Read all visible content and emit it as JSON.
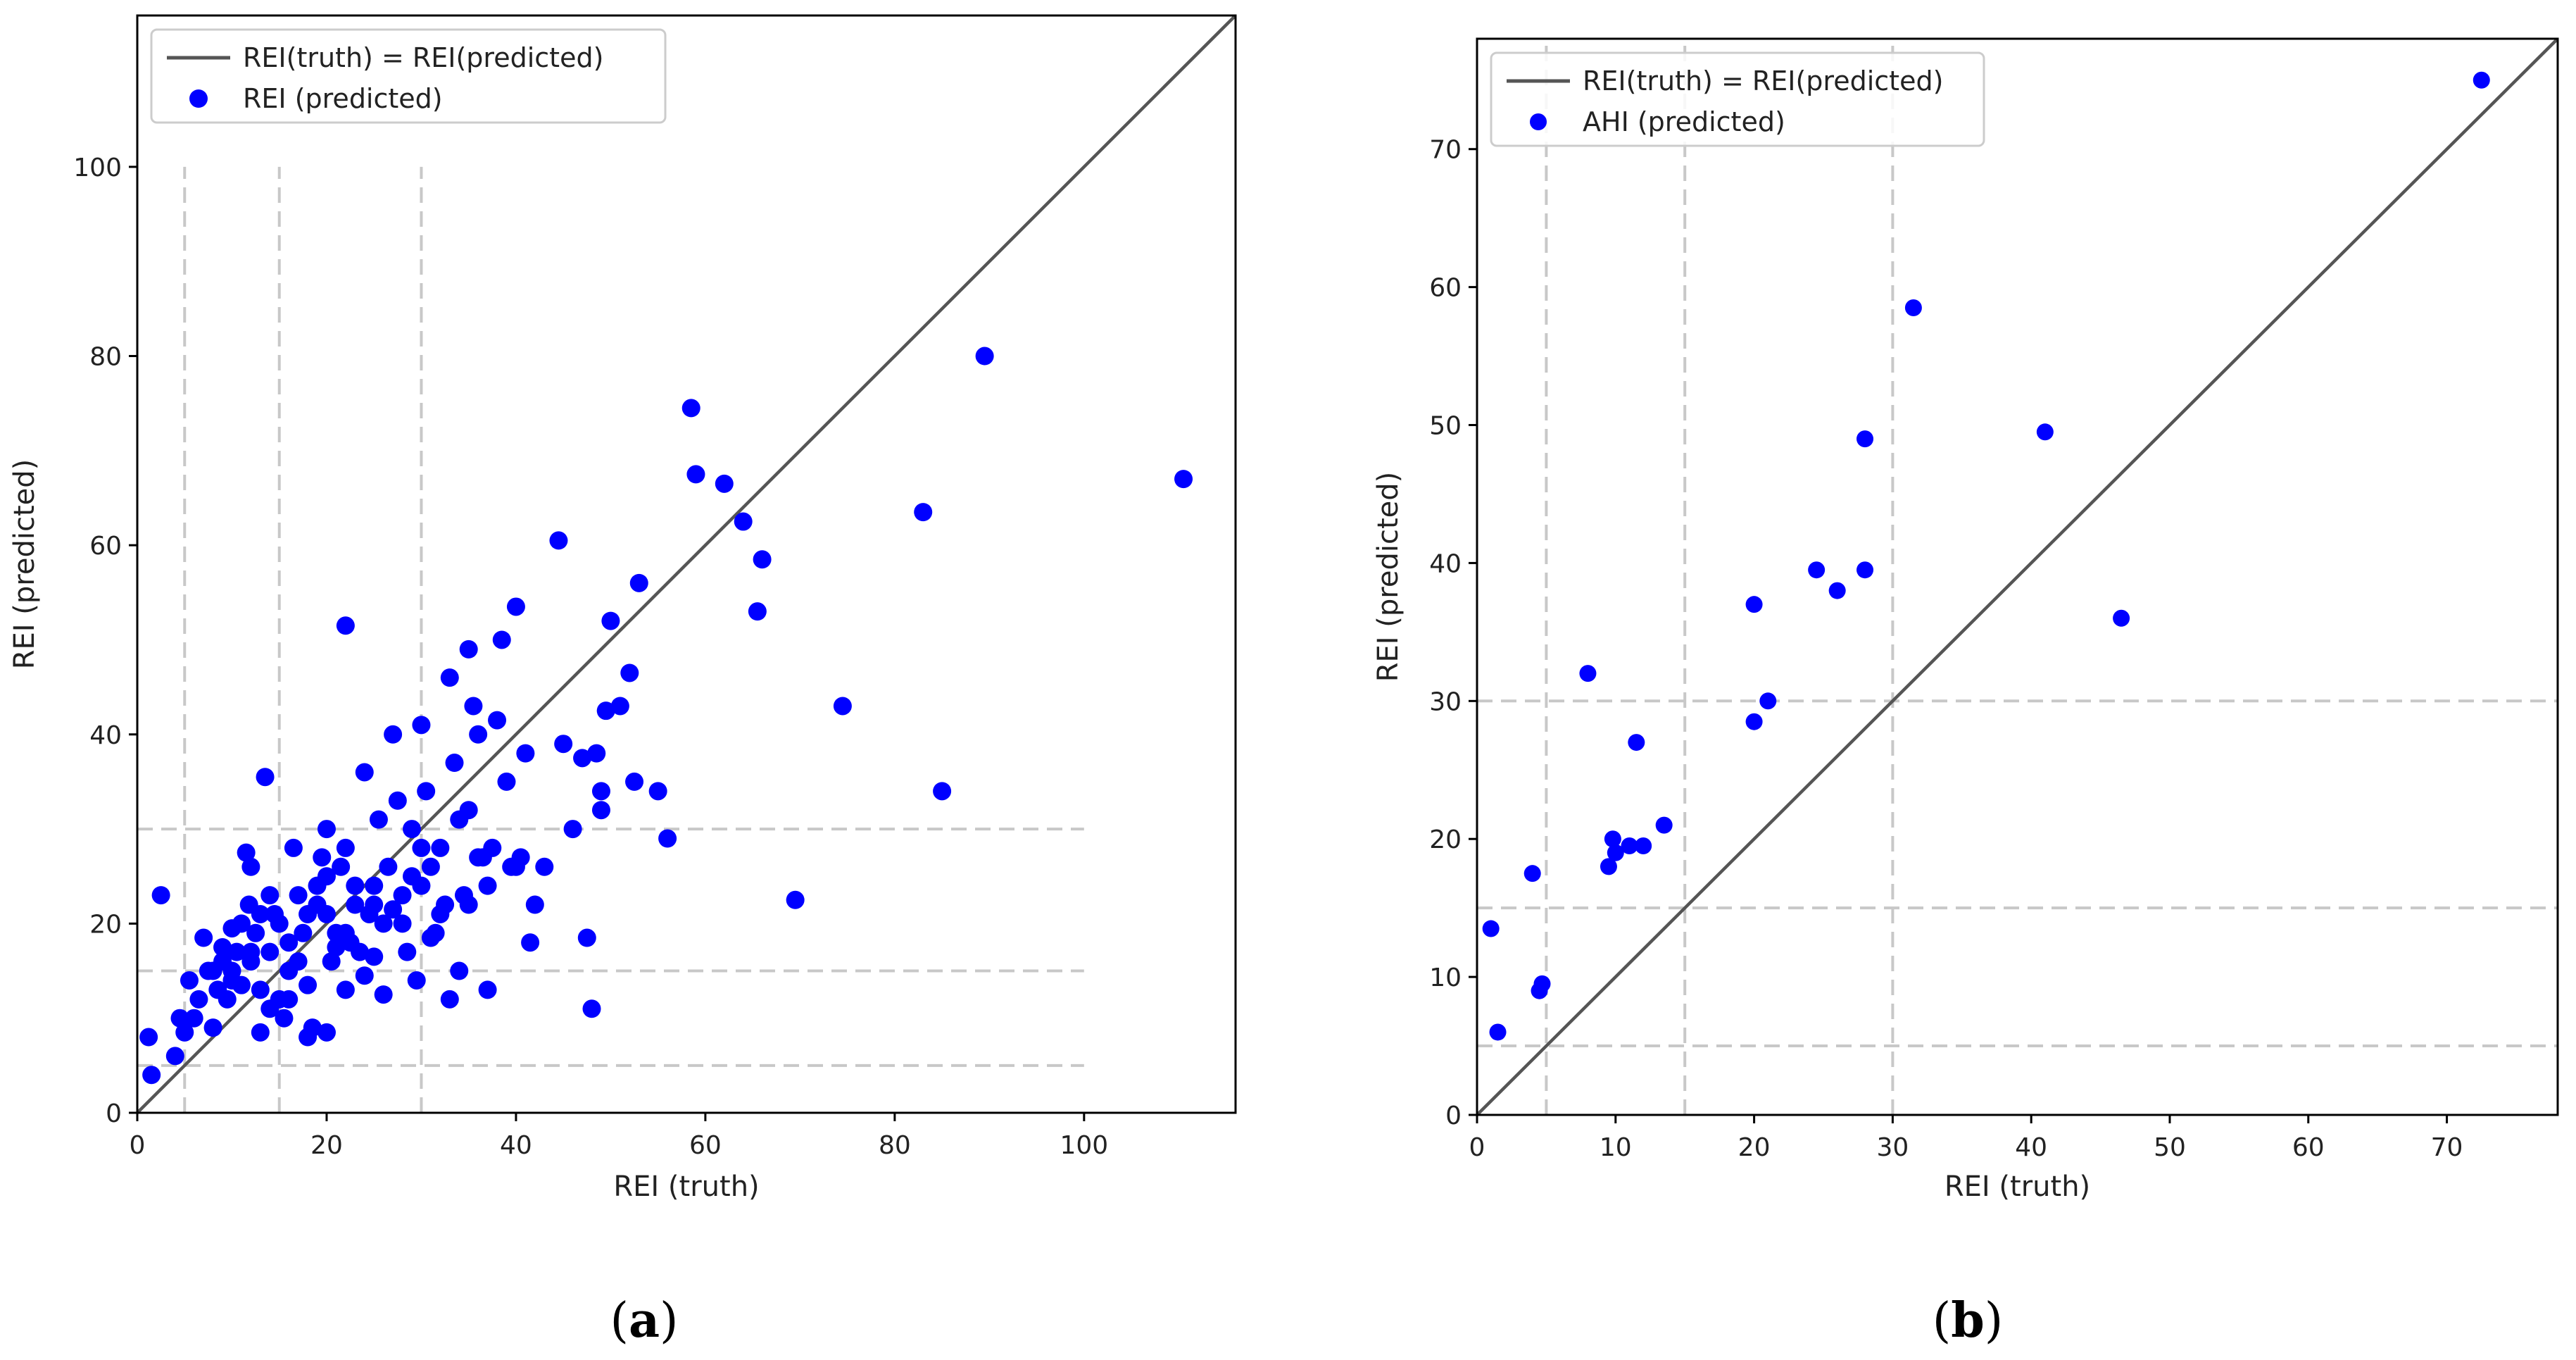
{
  "figure": {
    "caption_a": {
      "open": "(",
      "letter": "a",
      "close": ")"
    },
    "caption_b": {
      "open": "(",
      "letter": "b",
      "close": ")"
    }
  },
  "colors": {
    "points": "#0000ff",
    "identity": "#555555",
    "ref_lines": "#c8c8c8",
    "axes": "#000000"
  },
  "chart_data": [
    {
      "type": "scatter",
      "panel": "a",
      "xlabel": "REI (truth)",
      "ylabel": "REI (predicted)",
      "xlim": [
        0,
        116
      ],
      "ylim": [
        0,
        116
      ],
      "xticks": [
        0,
        20,
        40,
        60,
        80,
        100
      ],
      "yticks": [
        0,
        20,
        40,
        60,
        80,
        100
      ],
      "reference_lines": {
        "vertical": [
          5,
          15,
          30
        ],
        "vertical_range": [
          0,
          100
        ],
        "horizontal": [
          5,
          15,
          30
        ],
        "horizontal_range": [
          0,
          100
        ]
      },
      "legend": {
        "position": "top-left",
        "entries": [
          "REI(truth) = REI(predicted)",
          "REI (predicted)"
        ]
      },
      "series": [
        {
          "name": "REI (predicted)",
          "points": [
            [
              1.2,
              8
            ],
            [
              1.5,
              4
            ],
            [
              2.5,
              23
            ],
            [
              4,
              6
            ],
            [
              4.5,
              10
            ],
            [
              5,
              8.5
            ],
            [
              5.5,
              14
            ],
            [
              6,
              10
            ],
            [
              6.5,
              12
            ],
            [
              7,
              18.5
            ],
            [
              7.5,
              15
            ],
            [
              8,
              9
            ],
            [
              8.5,
              13
            ],
            [
              9,
              16
            ],
            [
              9.5,
              12
            ],
            [
              10,
              14
            ],
            [
              10.5,
              17
            ],
            [
              11,
              20
            ],
            [
              11.5,
              27.5
            ],
            [
              11.8,
              22
            ],
            [
              12,
              26
            ],
            [
              12.5,
              19
            ],
            [
              13,
              13
            ],
            [
              13,
              8.5
            ],
            [
              13.5,
              35.5
            ],
            [
              14,
              17
            ],
            [
              14.5,
              21
            ],
            [
              15,
              12
            ],
            [
              15.5,
              10
            ],
            [
              16,
              15
            ],
            [
              16.5,
              28
            ],
            [
              17,
              23
            ],
            [
              17.5,
              19
            ],
            [
              18,
              21
            ],
            [
              18.5,
              9
            ],
            [
              19,
              24
            ],
            [
              19.5,
              27
            ],
            [
              20,
              30
            ],
            [
              20,
              25
            ],
            [
              20.5,
              16
            ],
            [
              21,
              19
            ],
            [
              21.5,
              26
            ],
            [
              22,
              51.5
            ],
            [
              22,
              28
            ],
            [
              22.5,
              18
            ],
            [
              23,
              22
            ],
            [
              23.5,
              17
            ],
            [
              24,
              36
            ],
            [
              24.5,
              21
            ],
            [
              25,
              24
            ],
            [
              25.5,
              31
            ],
            [
              26,
              12.5
            ],
            [
              26.5,
              26
            ],
            [
              27,
              40
            ],
            [
              27.5,
              33
            ],
            [
              28,
              20
            ],
            [
              28.5,
              17
            ],
            [
              29,
              30
            ],
            [
              29.5,
              14
            ],
            [
              30,
              41
            ],
            [
              30.5,
              34
            ],
            [
              31,
              26
            ],
            [
              31.5,
              19
            ],
            [
              32,
              28
            ],
            [
              32.5,
              22
            ],
            [
              33,
              46
            ],
            [
              33.5,
              37
            ],
            [
              34,
              31
            ],
            [
              34.5,
              23
            ],
            [
              35,
              49
            ],
            [
              35.5,
              43
            ],
            [
              36,
              40
            ],
            [
              36.5,
              27
            ],
            [
              37,
              24
            ],
            [
              37.5,
              28
            ],
            [
              38,
              41.5
            ],
            [
              38.5,
              50
            ],
            [
              39,
              35
            ],
            [
              39.5,
              26
            ],
            [
              40,
              53.5
            ],
            [
              40.5,
              27
            ],
            [
              41,
              38
            ],
            [
              41.5,
              18
            ],
            [
              42,
              22
            ],
            [
              43,
              26
            ],
            [
              44.5,
              60.5
            ],
            [
              45,
              39
            ],
            [
              46,
              30
            ],
            [
              47,
              37.5
            ],
            [
              47.5,
              18.5
            ],
            [
              48,
              11
            ],
            [
              48.5,
              38
            ],
            [
              49,
              34
            ],
            [
              49,
              32
            ],
            [
              49.5,
              42.5
            ],
            [
              50,
              52
            ],
            [
              51,
              43
            ],
            [
              52,
              46.5
            ],
            [
              52.5,
              35
            ],
            [
              53,
              56
            ],
            [
              55,
              34
            ],
            [
              56,
              29
            ],
            [
              58.5,
              74.5
            ],
            [
              59,
              67.5
            ],
            [
              62,
              66.5
            ],
            [
              64,
              62.5
            ],
            [
              65.5,
              53
            ],
            [
              66,
              58.5
            ],
            [
              69.5,
              22.5
            ],
            [
              74.5,
              43
            ],
            [
              83,
              63.5
            ],
            [
              85,
              34
            ],
            [
              89.5,
              80
            ],
            [
              110.5,
              67
            ],
            [
              8,
              15
            ],
            [
              9,
              17.5
            ],
            [
              10,
              19.5
            ],
            [
              11,
              13.5
            ],
            [
              12,
              17
            ],
            [
              13,
              21
            ],
            [
              14,
              23
            ],
            [
              15,
              20
            ],
            [
              16,
              18
            ],
            [
              17,
              16
            ],
            [
              18,
              13.5
            ],
            [
              19,
              22
            ],
            [
              20,
              21
            ],
            [
              21,
              17.5
            ],
            [
              22,
              19
            ],
            [
              23,
              24
            ],
            [
              24,
              14.5
            ],
            [
              25,
              16.5
            ],
            [
              26,
              20
            ],
            [
              27,
              21.5
            ],
            [
              28,
              23
            ],
            [
              29,
              25
            ],
            [
              30,
              24
            ],
            [
              31,
              18.5
            ],
            [
              32,
              21
            ],
            [
              33,
              12
            ],
            [
              34,
              15
            ],
            [
              35,
              22
            ],
            [
              36,
              27
            ],
            [
              37,
              13
            ],
            [
              18,
              8
            ],
            [
              16,
              12
            ],
            [
              14,
              11
            ],
            [
              12,
              16
            ],
            [
              10,
              15
            ],
            [
              20,
              8.5
            ],
            [
              22,
              13
            ],
            [
              25,
              22
            ],
            [
              30,
              28
            ],
            [
              35,
              32
            ],
            [
              40,
              26
            ]
          ]
        }
      ]
    },
    {
      "type": "scatter",
      "panel": "b",
      "xlabel": "REI (truth)",
      "ylabel": "REI (predicted)",
      "xlim": [
        0,
        78
      ],
      "ylim": [
        0,
        78
      ],
      "xticks": [
        0,
        10,
        20,
        30,
        40,
        50,
        60,
        70
      ],
      "yticks": [
        0,
        10,
        20,
        30,
        40,
        50,
        60,
        70
      ],
      "reference_lines": {
        "vertical": [
          5,
          15,
          30
        ],
        "vertical_range": [
          0,
          78
        ],
        "horizontal": [
          5,
          15,
          30
        ],
        "horizontal_range": [
          0,
          78
        ]
      },
      "legend": {
        "position": "top-left",
        "entries": [
          "REI(truth) = REI(predicted)",
          "AHI (predicted)"
        ]
      },
      "series": [
        {
          "name": "AHI (predicted)",
          "points": [
            [
              1,
              13.5
            ],
            [
              1.5,
              6
            ],
            [
              4,
              17.5
            ],
            [
              4.5,
              9
            ],
            [
              4.7,
              9.5
            ],
            [
              8,
              32
            ],
            [
              9.5,
              18
            ],
            [
              9.8,
              20
            ],
            [
              10,
              19
            ],
            [
              11,
              19.5
            ],
            [
              11.5,
              27
            ],
            [
              12,
              19.5
            ],
            [
              13.5,
              21
            ],
            [
              20,
              28.5
            ],
            [
              20,
              37
            ],
            [
              21,
              30
            ],
            [
              24.5,
              39.5
            ],
            [
              26,
              38
            ],
            [
              28,
              39.5
            ],
            [
              28,
              49
            ],
            [
              31.5,
              58.5
            ],
            [
              41,
              49.5
            ],
            [
              46.5,
              36
            ],
            [
              72.5,
              75
            ]
          ]
        }
      ]
    }
  ]
}
